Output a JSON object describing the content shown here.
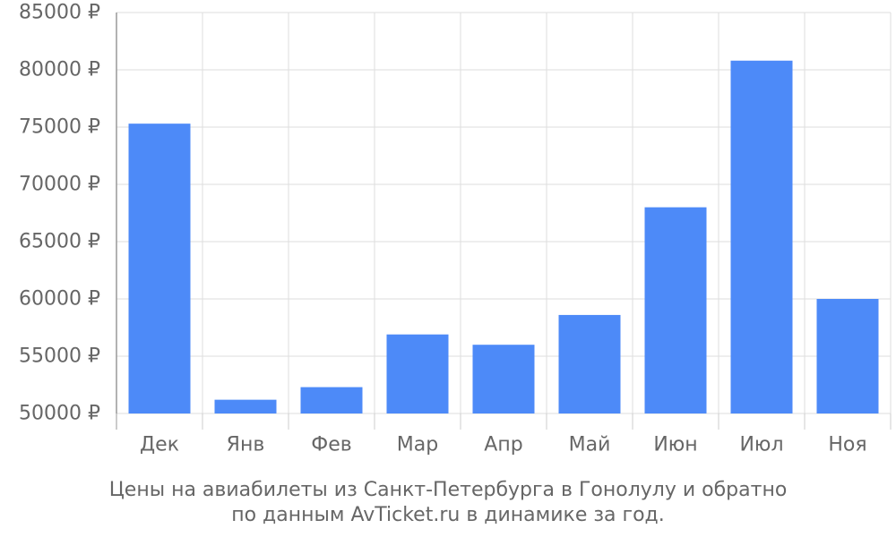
{
  "chart_data": {
    "type": "bar",
    "categories": [
      "Дек",
      "Янв",
      "Фев",
      "Мар",
      "Апр",
      "Май",
      "Июн",
      "Июл",
      "Ноя"
    ],
    "values": [
      75300,
      51200,
      52300,
      56900,
      56000,
      58600,
      68000,
      80800,
      60000
    ],
    "ylim": [
      50000,
      85000
    ],
    "yticks": [
      50000,
      55000,
      60000,
      65000,
      70000,
      75000,
      80000,
      85000
    ],
    "y_tick_suffix": " ₽",
    "grid": true,
    "bar_color": "#4d8af8",
    "title_line1": "Цены на авиабилеты из Санкт-Петербурга в Гонолулу и обратно",
    "title_line2": "по данным AvTicket.ru в динамике за год."
  }
}
